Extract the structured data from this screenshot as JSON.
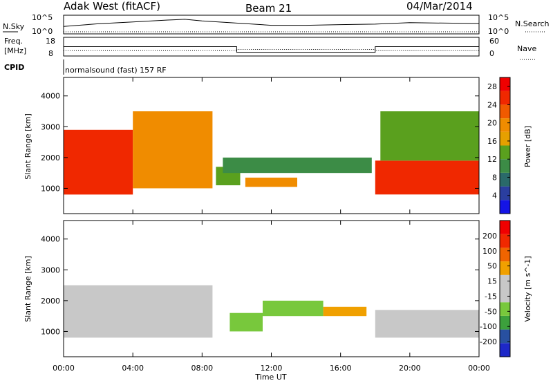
{
  "header": {
    "station": "Adak West (fitACF)",
    "beam": "Beam 21",
    "date": "04/Mar/2014"
  },
  "summary_panel": {
    "left_label": "N.Sky",
    "left_ticks": [
      "10^5",
      "10^0"
    ],
    "right_ticks": [
      "10^5",
      "10^0"
    ],
    "right_label": "N.Search"
  },
  "freq_panel": {
    "label_line1": "Freq.",
    "label_line2": "[MHz]",
    "left_ticks": [
      "18",
      "8"
    ],
    "right_ticks": [
      "60",
      "0"
    ],
    "right_label": "Nave"
  },
  "cpid": {
    "label": "CPID",
    "program": "normalsound (fast) 157 RF"
  },
  "colors": {
    "power_scale": [
      "#1414e6",
      "#2a3ea0",
      "#2a6a6a",
      "#3c8c46",
      "#5aa01e",
      "#e6a000",
      "#f08c00",
      "#f05a00",
      "#f02800",
      "#f00000"
    ],
    "velocity_scale": [
      "#1e28c8",
      "#2850a0",
      "#3ca03c",
      "#78c83c",
      "#c8c8c8",
      "#c8c8c8",
      "#f0a000",
      "#f06400",
      "#f02800",
      "#f00000"
    ],
    "ground_scatter": "#c8c8c8"
  },
  "chart_data": [
    {
      "type": "line",
      "name": "noise-sky-and-search",
      "x": [
        "00:00",
        "02:00",
        "04:00",
        "06:00",
        "07:00",
        "08:00",
        "12:00",
        "14:00",
        "16:00",
        "18:00",
        "20:00",
        "24:00"
      ],
      "series": [
        {
          "values": [
            100.0,
            500.0,
            1500.0,
            5000.0,
            8000.0,
            3000.0,
            200.0,
            200.0,
            300.0,
            400.0,
            1000.0,
            600.0
          ]
        }
      ],
      "yscale": "log",
      "ylim": [
        1,
        100000
      ]
    },
    {
      "type": "line",
      "name": "frequency-and-nave",
      "x": [
        "00:00",
        "10:00",
        "10:00",
        "18:00",
        "18:00",
        "24:00"
      ],
      "series": [
        {
          "values": [
            13,
            13,
            10,
            10,
            13,
            13
          ]
        },
        {
          "values": [
            17,
            17,
            21,
            21,
            17,
            17
          ]
        }
      ],
      "ylim": [
        8,
        18
      ],
      "y2lim": [
        0,
        60
      ]
    },
    {
      "type": "heatmap",
      "name": "power",
      "xlabel": "Time UT",
      "ylabel": "Slant Range [km]",
      "x_ticks": [
        "00:00",
        "04:00",
        "08:00",
        "12:00",
        "16:00",
        "20:00",
        "00:00"
      ],
      "y_ticks": [
        1000,
        2000,
        3000,
        4000
      ],
      "xlim": [
        0,
        24
      ],
      "ylim": [
        180,
        4600
      ],
      "colorbar_label": "Power [dB]",
      "colorbar_ticks": [
        "4",
        "8",
        "12",
        "16",
        "20",
        "24",
        "28"
      ],
      "colorbar_range": [
        0,
        30
      ],
      "regions": [
        {
          "t0": 0,
          "t1": 4,
          "r0": 800,
          "r1": 2900,
          "level": 24
        },
        {
          "t0": 4,
          "t1": 8.6,
          "r0": 1000,
          "r1": 3500,
          "level": 20
        },
        {
          "t0": 8.8,
          "t1": 10.2,
          "r0": 1100,
          "r1": 1700,
          "level": 14
        },
        {
          "t0": 9.2,
          "t1": 17.8,
          "r0": 1500,
          "r1": 2000,
          "level": 10
        },
        {
          "t0": 10.5,
          "t1": 13.5,
          "r0": 1050,
          "r1": 1350,
          "level": 20
        },
        {
          "t0": 18.0,
          "t1": 24,
          "r0": 800,
          "r1": 1900,
          "level": 26
        },
        {
          "t0": 18.3,
          "t1": 24,
          "r0": 1900,
          "r1": 3500,
          "level": 14
        }
      ]
    },
    {
      "type": "heatmap",
      "name": "velocity",
      "xlabel": "Time UT",
      "ylabel": "Slant Range [km]",
      "x_ticks": [
        "00:00",
        "04:00",
        "08:00",
        "12:00",
        "16:00",
        "20:00",
        "00:00"
      ],
      "y_ticks": [
        1000,
        2000,
        3000,
        4000
      ],
      "xlim": [
        0,
        24
      ],
      "ylim": [
        180,
        4600
      ],
      "colorbar_label": "Velocity [m s^-1]",
      "colorbar_ticks": [
        "200",
        "100",
        "50",
        "15",
        "-15",
        "-50",
        "-100",
        "-200"
      ],
      "colorbar_range": [
        -250,
        250
      ],
      "regions": [
        {
          "t0": 0,
          "t1": 8.6,
          "r0": 800,
          "r1": 2500,
          "level": 0
        },
        {
          "t0": 9.6,
          "t1": 11.5,
          "r0": 1000,
          "r1": 1600,
          "level": -80
        },
        {
          "t0": 11.5,
          "t1": 15,
          "r0": 1500,
          "r1": 2000,
          "level": -60
        },
        {
          "t0": 15,
          "t1": 17.5,
          "r0": 1500,
          "r1": 1800,
          "level": 60
        },
        {
          "t0": 18.0,
          "t1": 24,
          "r0": 800,
          "r1": 1700,
          "level": 0
        }
      ]
    }
  ]
}
